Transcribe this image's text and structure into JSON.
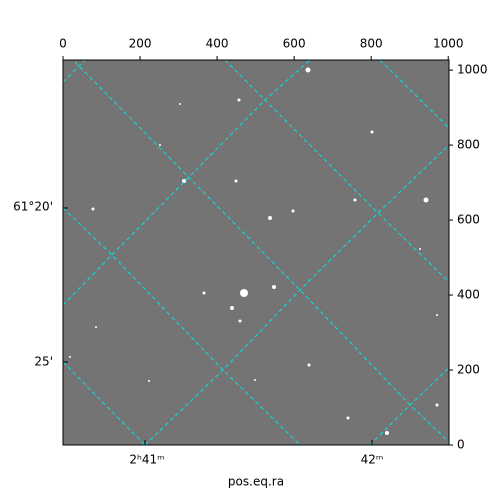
{
  "chart_data": {
    "type": "image",
    "xlabel": "pos.eq.ra",
    "xlim": [
      0,
      1002
    ],
    "ylim": [
      0,
      1027
    ],
    "xticks": [
      0,
      200,
      400,
      600,
      800,
      1000
    ],
    "yticks": [
      0,
      200,
      400,
      600,
      800,
      1000
    ],
    "world_ticks": {
      "bottom": [
        "2ʰ41ᵐ",
        "42ᵐ"
      ],
      "left": [
        "61°20'",
        "25'"
      ]
    },
    "grid_color": "#00e5e5"
  }
}
